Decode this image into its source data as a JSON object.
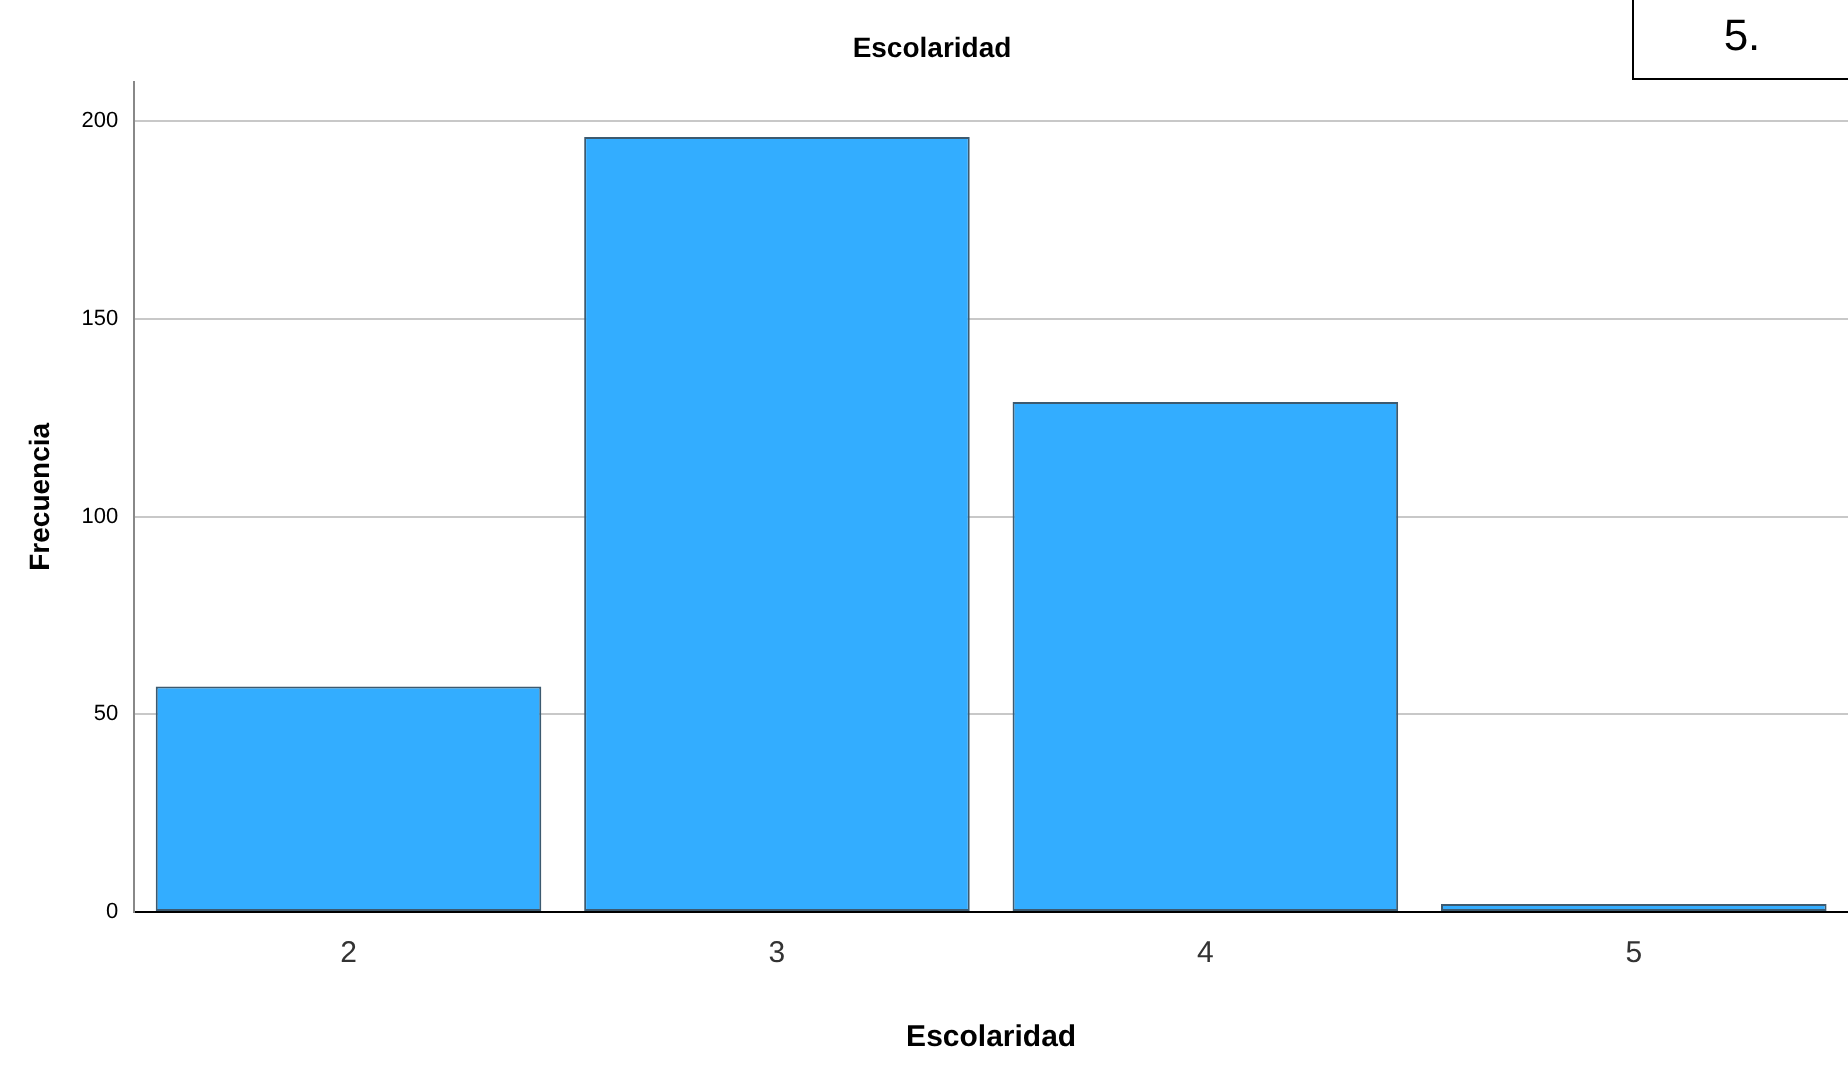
{
  "chart_data": {
    "type": "bar",
    "title": "Escolaridad",
    "xlabel": "Escolaridad",
    "ylabel": "Frecuencia",
    "categories": [
      "2",
      "3",
      "4",
      "5"
    ],
    "values": [
      57,
      196,
      129,
      2
    ],
    "color": "#33adff",
    "ylim": [
      0,
      210
    ],
    "yticks": [
      0,
      50,
      100,
      150,
      200
    ],
    "grid": "y",
    "legend": false,
    "annotations": [
      "5."
    ]
  }
}
